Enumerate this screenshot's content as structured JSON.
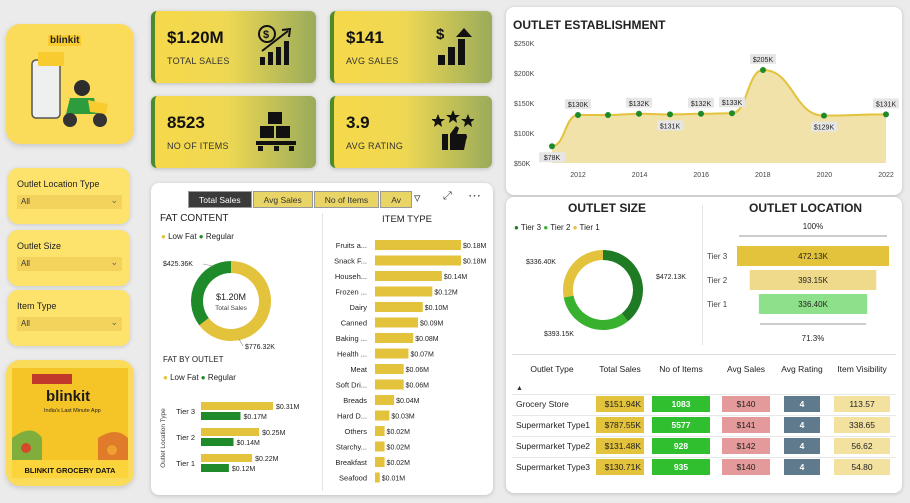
{
  "logo": {
    "brand": "blinkit",
    "brand2": "blinkit",
    "tagline": "India's Last Minute App",
    "title": "BLINKIT GROCERY DATA"
  },
  "slicers": [
    {
      "label": "Outlet Location Type",
      "value": "All"
    },
    {
      "label": "Outlet Size",
      "value": "All"
    },
    {
      "label": "Item Type",
      "value": "All"
    }
  ],
  "kpis": [
    {
      "value": "$1.20M",
      "caption": "TOTAL SALES",
      "icon": "dollar-growth-icon"
    },
    {
      "value": "$141",
      "caption": "AVG SALES",
      "icon": "dollar-bars-icon"
    },
    {
      "value": "8523",
      "caption": "NO OF ITEMS",
      "icon": "boxes-icon"
    },
    {
      "value": "3.9",
      "caption": "AVG RATING",
      "icon": "stars-thumb-icon"
    }
  ],
  "tabs": [
    "Total Sales",
    "Avg Sales",
    "No of Items",
    "Av"
  ],
  "fat_content": {
    "title": "FAT CONTENT",
    "legend": [
      "Low Fat",
      "Regular"
    ],
    "center_value": "$1.20M",
    "center_label": "Total Sales",
    "labels": [
      "$425.36K",
      "$776.32K"
    ]
  },
  "fat_by_outlet": {
    "title": "FAT BY OUTLET",
    "legend": [
      "Low Fat",
      "Regular"
    ],
    "axis_label": "Outlet Location Type"
  },
  "item_type": {
    "title": "ITEM TYPE"
  },
  "outlet_est": {
    "title": "OUTLET ESTABLISHMENT"
  },
  "outlet_size": {
    "title": "OUTLET SIZE",
    "legend": [
      "Tier 3",
      "Tier 2",
      "Tier 1"
    ],
    "labels": [
      "$336.40K",
      "$472.13K",
      "$393.15K"
    ]
  },
  "outlet_location": {
    "title": "OUTLET LOCATION",
    "top": "100%",
    "bottom": "71.3%"
  },
  "table": {
    "headers": [
      "Outlet Type",
      "Total Sales",
      "No of Items",
      "Avg Sales",
      "Avg Rating",
      "Item Visibility"
    ],
    "rows": [
      [
        "Grocery Store",
        "$151.94K",
        "1083",
        "$140",
        "4",
        "113.57"
      ],
      [
        "Supermarket Type1",
        "$787.55K",
        "5577",
        "$141",
        "4",
        "338.65"
      ],
      [
        "Supermarket Type2",
        "$131.48K",
        "928",
        "$142",
        "4",
        "56.62"
      ],
      [
        "Supermarket Type3",
        "$130.71K",
        "935",
        "$140",
        "4",
        "54.80"
      ]
    ]
  },
  "colors": {
    "yellow": "#e3c23c",
    "green": "#1f8a2a",
    "lightgreen": "#8fe08a",
    "red": "#e49a9a",
    "slate": "#5e7a8c"
  },
  "chart_data": [
    {
      "type": "line",
      "title": "OUTLET ESTABLISHMENT",
      "x": [
        2010,
        2011,
        2012,
        2014,
        2015,
        2016,
        2017,
        2018,
        2020,
        2022
      ],
      "values": [
        78,
        130,
        130,
        132,
        131,
        132,
        133,
        205,
        129,
        131
      ],
      "value_labels": [
        "$78K",
        "$130K",
        "",
        "$132K",
        "$131K",
        "$132K",
        "$133K",
        "$205K",
        "$129K",
        "$131K"
      ],
      "x_ticks": [
        "2012",
        "2014",
        "2016",
        "2018",
        "2020",
        "2022"
      ],
      "y_ticks": [
        "$50K",
        "$100K",
        "$150K",
        "$200K",
        "$250K"
      ],
      "ylim": [
        50,
        250
      ]
    },
    {
      "type": "bar",
      "title": "ITEM TYPE",
      "categories": [
        "Fruits a...",
        "Snack F...",
        "Househ...",
        "Frozen ...",
        "Dairy",
        "Canned",
        "Baking ...",
        "Health ...",
        "Meat",
        "Soft Dri...",
        "Breads",
        "Hard D...",
        "Others",
        "Starchy...",
        "Breakfast",
        "Seafood"
      ],
      "values": [
        0.18,
        0.18,
        0.14,
        0.12,
        0.1,
        0.09,
        0.08,
        0.07,
        0.06,
        0.06,
        0.04,
        0.03,
        0.02,
        0.02,
        0.02,
        0.01
      ],
      "value_labels": [
        "$0.18M",
        "$0.18M",
        "$0.14M",
        "$0.12M",
        "$0.10M",
        "$0.09M",
        "$0.08M",
        "$0.07M",
        "$0.06M",
        "$0.06M",
        "$0.04M",
        "$0.03M",
        "$0.02M",
        "$0.02M",
        "$0.02M",
        "$0.01M"
      ]
    },
    {
      "type": "bar",
      "title": "FAT BY OUTLET",
      "categories": [
        "Tier 3",
        "Tier 2",
        "Tier 1"
      ],
      "series": [
        {
          "name": "Low Fat",
          "values": [
            0.31,
            0.25,
            0.22
          ],
          "labels": [
            "$0.31M",
            "$0.25M",
            "$0.22M"
          ]
        },
        {
          "name": "Regular",
          "values": [
            0.17,
            0.14,
            0.12
          ],
          "labels": [
            "$0.17M",
            "$0.14M",
            "$0.12M"
          ]
        }
      ]
    },
    {
      "type": "pie",
      "title": "FAT CONTENT",
      "categories": [
        "Low Fat",
        "Regular"
      ],
      "values": [
        776.32,
        425.36
      ]
    },
    {
      "type": "pie",
      "title": "OUTLET SIZE",
      "categories": [
        "Tier 3",
        "Tier 2",
        "Tier 1"
      ],
      "values": [
        472.13,
        393.15,
        336.4
      ]
    },
    {
      "type": "bar",
      "title": "OUTLET LOCATION",
      "categories": [
        "Tier 3",
        "Tier 2",
        "Tier 1"
      ],
      "values": [
        472.13,
        393.15,
        336.4
      ],
      "value_labels": [
        "472.13K",
        "393.15K",
        "336.40K"
      ]
    }
  ]
}
